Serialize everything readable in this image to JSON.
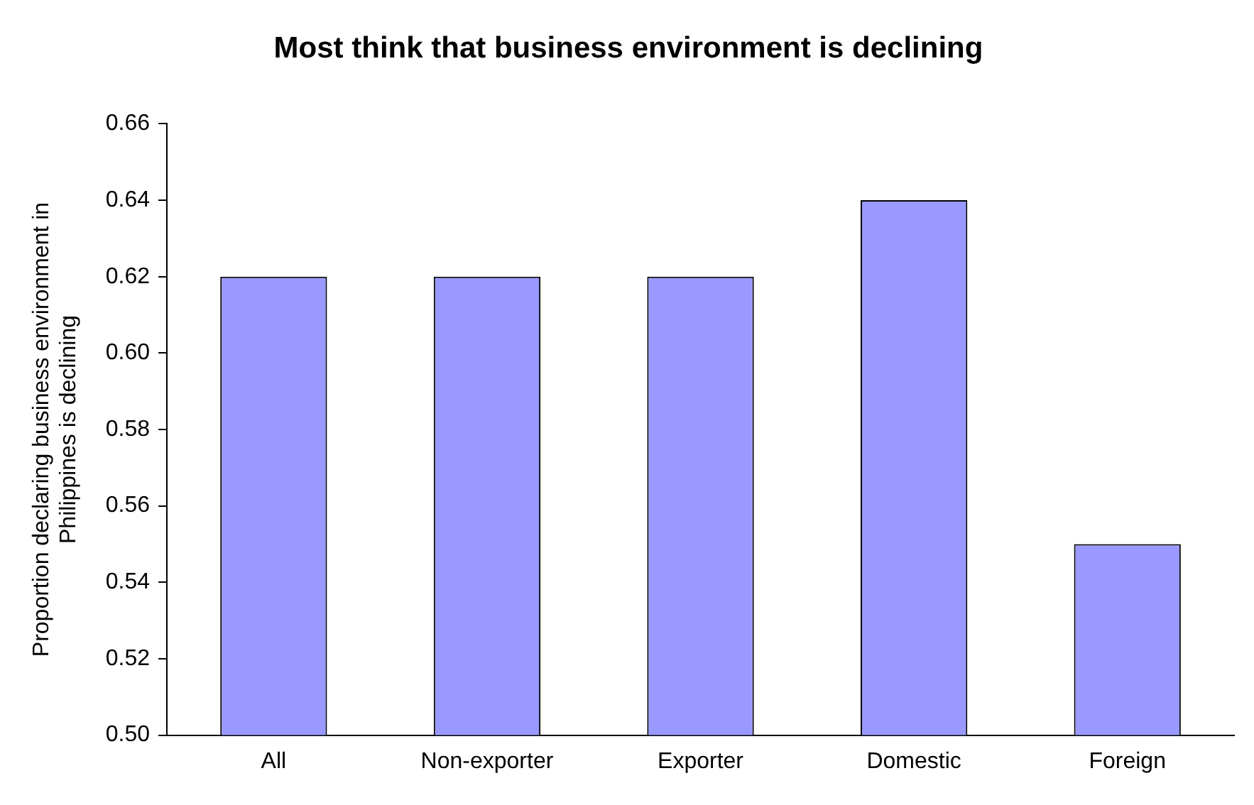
{
  "chart_data": {
    "type": "bar",
    "title": "Most think that business environment is declining",
    "ylabel": "Proportion declaring business environment in Philippines is declining",
    "categories": [
      "All",
      "Non-exporter",
      "Exporter",
      "Domestic",
      "Foreign"
    ],
    "values": [
      0.62,
      0.62,
      0.62,
      0.64,
      0.55
    ],
    "color": "#9999ff",
    "ylim": [
      0.5,
      0.66
    ],
    "yticks": [
      {
        "value": 0.5,
        "label": "0.50"
      },
      0.52,
      0.54,
      0.56,
      0.58,
      {
        "value": 0.6,
        "label": "0.60"
      },
      0.62,
      0.64,
      0.66
    ],
    "grid": false,
    "legend": false
  }
}
